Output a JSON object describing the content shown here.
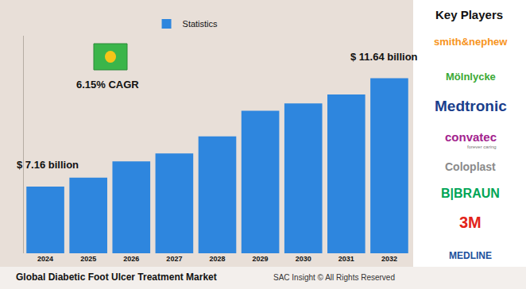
{
  "chart_data": {
    "type": "bar",
    "title": "Global Diabetic Foot Ulcer Treatment Market",
    "subtitle": "SAC Insight © All Rights Reserved",
    "categories": [
      "2024",
      "2025",
      "2026",
      "2027",
      "2028",
      "2029",
      "2030",
      "2031",
      "2032"
    ],
    "series": [
      {
        "name": "Statistics",
        "color": "#2e86de",
        "values": [
          7.16,
          7.53,
          8.2,
          8.53,
          9.24,
          10.3,
          10.6,
          10.97,
          11.64
        ]
      }
    ],
    "ylim": [
      4.4,
      13.4
    ],
    "tick_labels": "x",
    "grid": false,
    "legend": "top",
    "annotations": [
      {
        "text": "$ 7.16 billion",
        "category": "2024"
      },
      {
        "text": "$ 11.64 billion",
        "category": "2032"
      },
      {
        "text": "6.15% CAGR"
      }
    ],
    "key_players": {
      "title": "Key Players",
      "names": [
        {
          "name": "smith&nephew"
        },
        {
          "name": "Mölnlycke"
        },
        {
          "name": "Medtronic"
        },
        {
          "name": "convatec",
          "tagline": "forever caring"
        },
        {
          "name": "Coloplast"
        },
        {
          "name": "B|BRAUN"
        },
        {
          "name": "3M"
        },
        {
          "name": "MEDLINE"
        }
      ]
    }
  }
}
